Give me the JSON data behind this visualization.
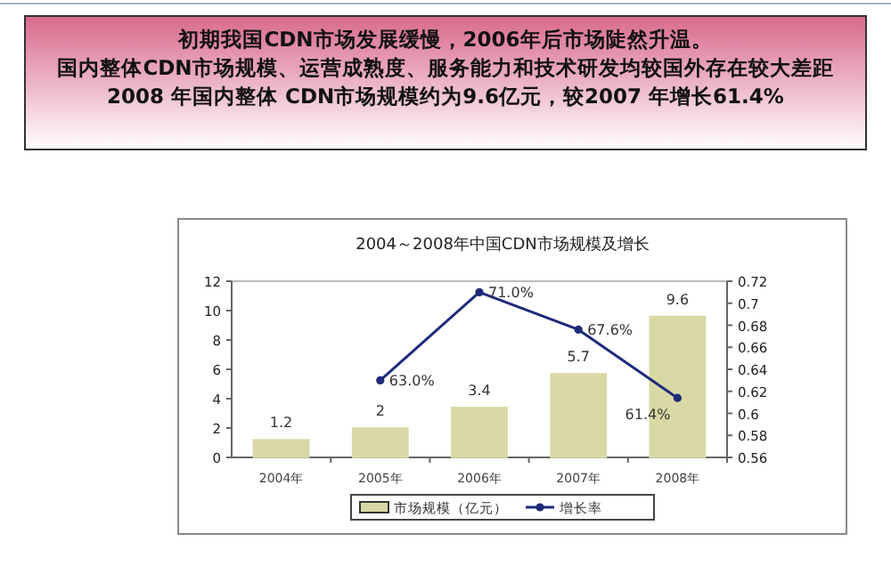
{
  "chart_data": {
    "type": "bar",
    "title": "2004～2008年中国CDN市场规模及增长",
    "annotations": [
      "初期我国CDN市场发展缓慢，2006年后市场陡然升温。",
      "国内整体CDN市场规模、运营成熟度、服务能力和技术研发均较国外存在较大差距",
      "2008 年国内整体 CDN市场规模约为9.6亿元，较2007 年增长61.4%"
    ],
    "categories": [
      "2004年",
      "2005年",
      "2006年",
      "2007年",
      "2008年"
    ],
    "series": [
      {
        "name": "市场规模（亿元）",
        "color": "#d9d9a6",
        "values": [
          1.2,
          2,
          3.4,
          5.7,
          9.6
        ],
        "value_labels": [
          "1.2",
          "2",
          "3.4",
          "5.7",
          "9.6"
        ]
      },
      {
        "name": "增长率",
        "type": "line",
        "axis": "y2",
        "color": "#1f2a7a",
        "values": [
          null,
          0.63,
          0.71,
          0.676,
          0.614
        ],
        "value_labels": [
          null,
          "63.0%",
          "71.0%",
          "67.6%",
          "61.4%"
        ]
      }
    ],
    "ylim": [
      0,
      12
    ],
    "yticks": [
      0,
      2,
      4,
      6,
      8,
      10,
      12
    ],
    "y2lim": [
      0.56,
      0.72
    ],
    "y2ticks": [
      0.56,
      0.58,
      0.6,
      0.62,
      0.64,
      0.66,
      0.68,
      0.7,
      0.72
    ],
    "legend": "bottom",
    "marker": "circle",
    "grid": false
  }
}
